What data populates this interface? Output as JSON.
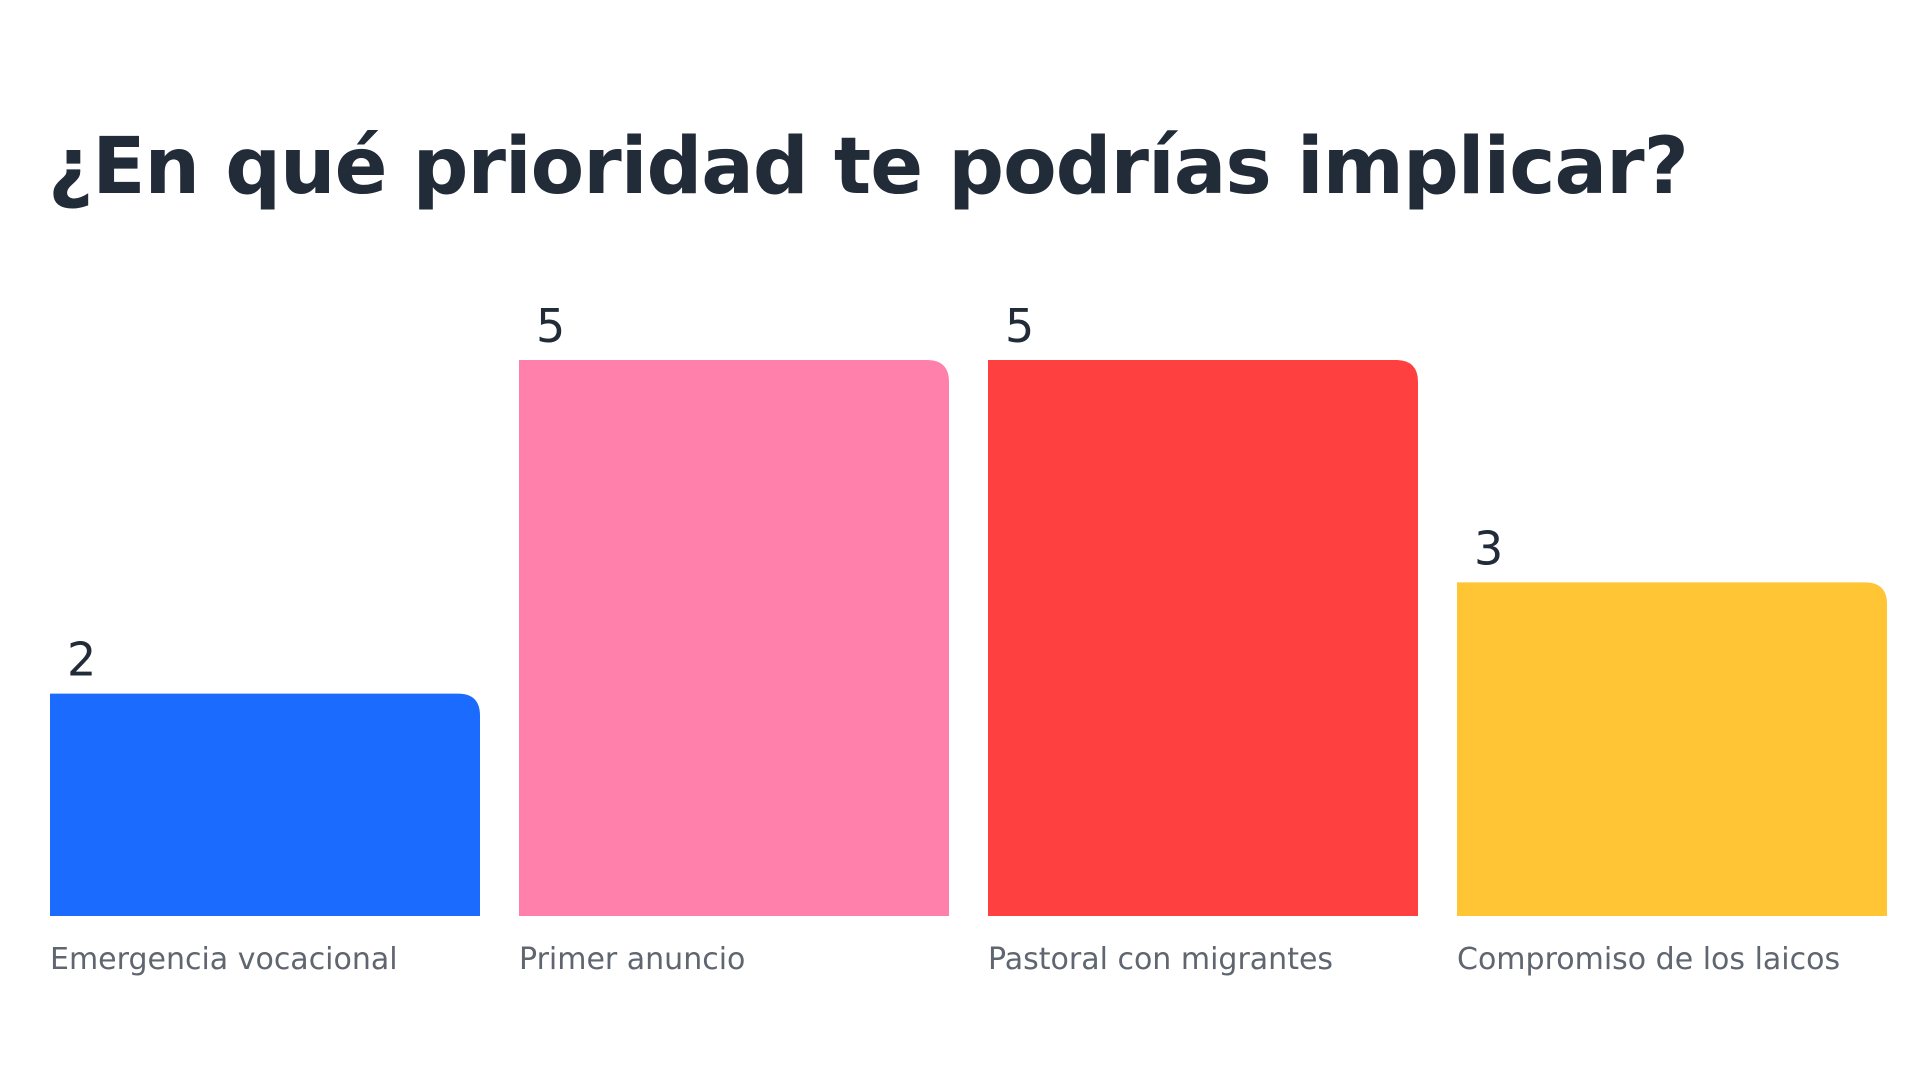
{
  "title": "¿En qué prioridad te podrías implicar?",
  "chart_data": {
    "type": "bar",
    "title": "¿En qué prioridad te podrías implicar?",
    "categories": [
      "Emergencia vocacional",
      "Primer anuncio",
      "Pastoral con migrantes",
      "Compromiso de los laicos"
    ],
    "values": [
      2,
      5,
      5,
      3
    ],
    "colors": [
      "#1c6bff",
      "#ff80aa",
      "#ff4040",
      "#ffc535"
    ],
    "value_labels": [
      "2",
      "5",
      "5",
      "3"
    ],
    "xlabel": "",
    "ylabel": "",
    "ylim": [
      0,
      5
    ],
    "grid": false,
    "legend": "none"
  }
}
